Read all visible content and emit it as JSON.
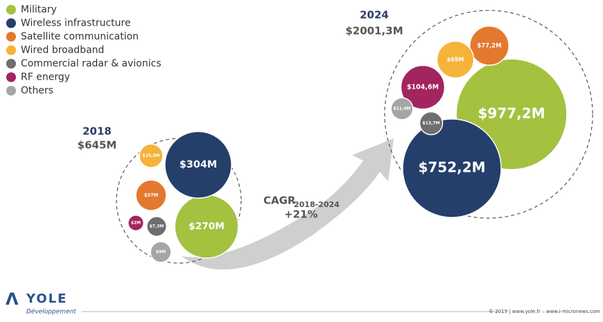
{
  "chart_data": [
    {
      "type": "packed_bubble",
      "title": "2018",
      "subtitle": "$645M",
      "categories": [
        "Military",
        "Wireless infrastructure",
        "Satellite communication",
        "Wired broadband",
        "Commercial radar & avionics",
        "RF energy",
        "Others"
      ],
      "colors": [
        "#a4c140",
        "#253f6b",
        "#e4782f",
        "#f6b33c",
        "#6e6e6e",
        "#a3245f",
        "#a6a6a6"
      ],
      "values": [
        270,
        304,
        37,
        15.5,
        7.3,
        2,
        9
      ],
      "value_labels": [
        "$270M",
        "$304M",
        "$37M",
        "$15,5M",
        "$7,3M",
        "$2M",
        "$9M"
      ]
    },
    {
      "type": "packed_bubble",
      "title": "2024",
      "subtitle": "$2001,3M",
      "categories": [
        "Military",
        "Wireless infrastructure",
        "Satellite communication",
        "Wired broadband",
        "Commercial radar & avionics",
        "RF energy",
        "Others"
      ],
      "colors": [
        "#a4c140",
        "#253f6b",
        "#e4782f",
        "#f6b33c",
        "#6e6e6e",
        "#a3245f",
        "#a6a6a6"
      ],
      "values": [
        977.2,
        752.2,
        77.2,
        65,
        13.7,
        104.6,
        11.4
      ],
      "value_labels": [
        "$977,2M",
        "$752,2M",
        "$77,2M",
        "$65M",
        "$13,7M",
        "$104,6M",
        "$11,4M"
      ]
    }
  ],
  "annotation": {
    "label": "CAGR",
    "sub": "2018-2024",
    "value": "+21%"
  },
  "logo": {
    "name": "YOLE",
    "sub": "Développement"
  },
  "footer": "© 2019 | www.yole.fr – www.i-micronews.com"
}
